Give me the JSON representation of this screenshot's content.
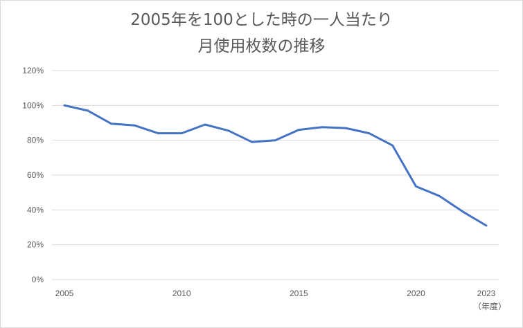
{
  "chart_data": {
    "type": "line",
    "title_line1": "2005年を100とした時の一人当たり",
    "title_line2": "月使用枚数の推移",
    "xlabel": "（年度）",
    "ylabel": "",
    "x": [
      2005,
      2006,
      2007,
      2008,
      2009,
      2010,
      2011,
      2012,
      2013,
      2014,
      2015,
      2016,
      2017,
      2018,
      2019,
      2020,
      2021,
      2022,
      2023
    ],
    "series": [
      {
        "name": "",
        "values": [
          100,
          97,
          89.5,
          88.5,
          84,
          84,
          89,
          85.5,
          79,
          80,
          86,
          87.5,
          87,
          84,
          77,
          53.5,
          48,
          39,
          31
        ]
      }
    ],
    "xticks": [
      "2005",
      "2010",
      "2015",
      "2020",
      "2023"
    ],
    "yticks": [
      "0%",
      "20%",
      "40%",
      "60%",
      "80%",
      "100%",
      "120%"
    ],
    "xlim": [
      2005,
      2023
    ],
    "ylim": [
      0,
      120
    ],
    "grid": true,
    "legend": "none",
    "line_color": "#4472c4",
    "grid_color": "#d9d9d9"
  }
}
